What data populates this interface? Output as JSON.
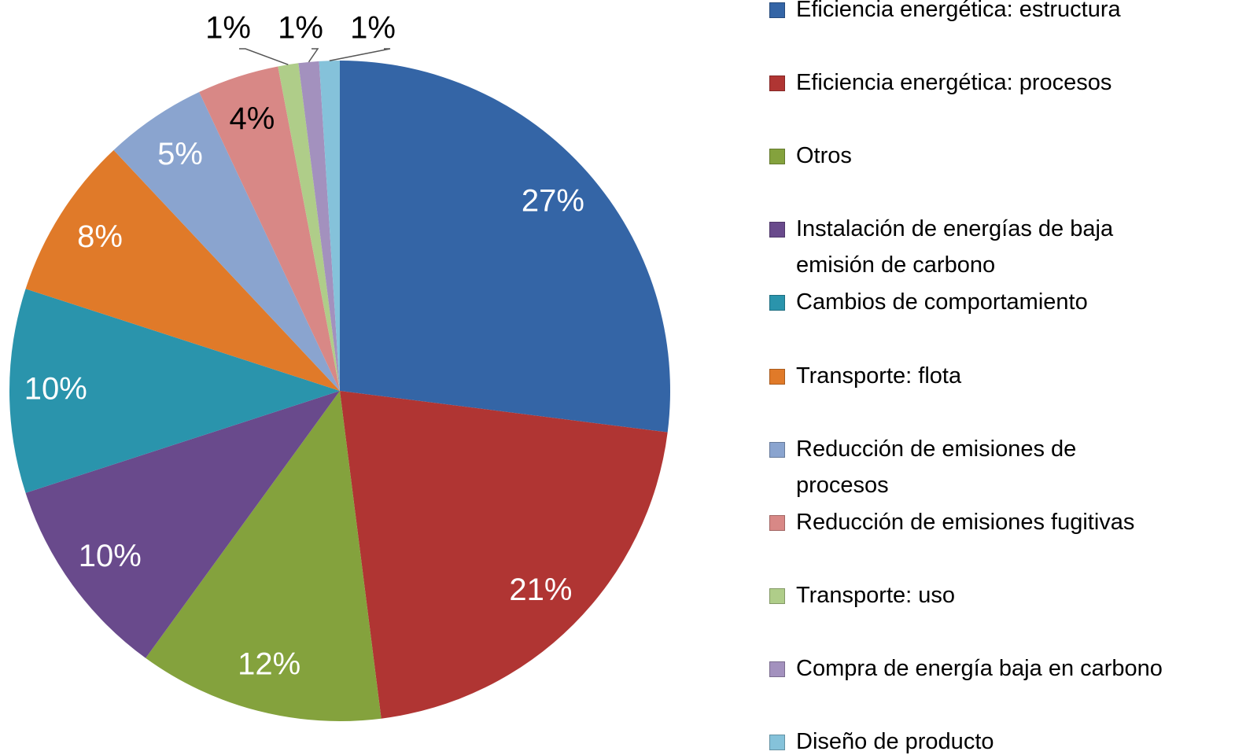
{
  "chart_data": {
    "type": "pie",
    "categories": [
      "Eficiencia energética: estructura",
      "Eficiencia energética: procesos",
      "Otros",
      "Instalación de energías de baja emisión de carbono",
      "Cambios de comportamiento",
      "Transporte: flota",
      "Reducción de emisiones de procesos",
      "Reducción de emisiones fugitivas",
      "Transporte: uso",
      "Compra de energía baja en carbono",
      "Diseño de producto"
    ],
    "values": [
      27,
      21,
      12,
      10,
      10,
      8,
      5,
      4,
      1,
      1,
      1
    ],
    "value_labels": [
      "27%",
      "21%",
      "12%",
      "10%",
      "10%",
      "8%",
      "5%",
      "4%",
      "1%",
      "1%",
      "1%"
    ],
    "colors": [
      "#3465a6",
      "#b03533",
      "#84a23d",
      "#694a8c",
      "#2a94ac",
      "#e07a29",
      "#8aa4cf",
      "#d88886",
      "#afcd89",
      "#a391be",
      "#85c2da"
    ],
    "legend": "right"
  }
}
